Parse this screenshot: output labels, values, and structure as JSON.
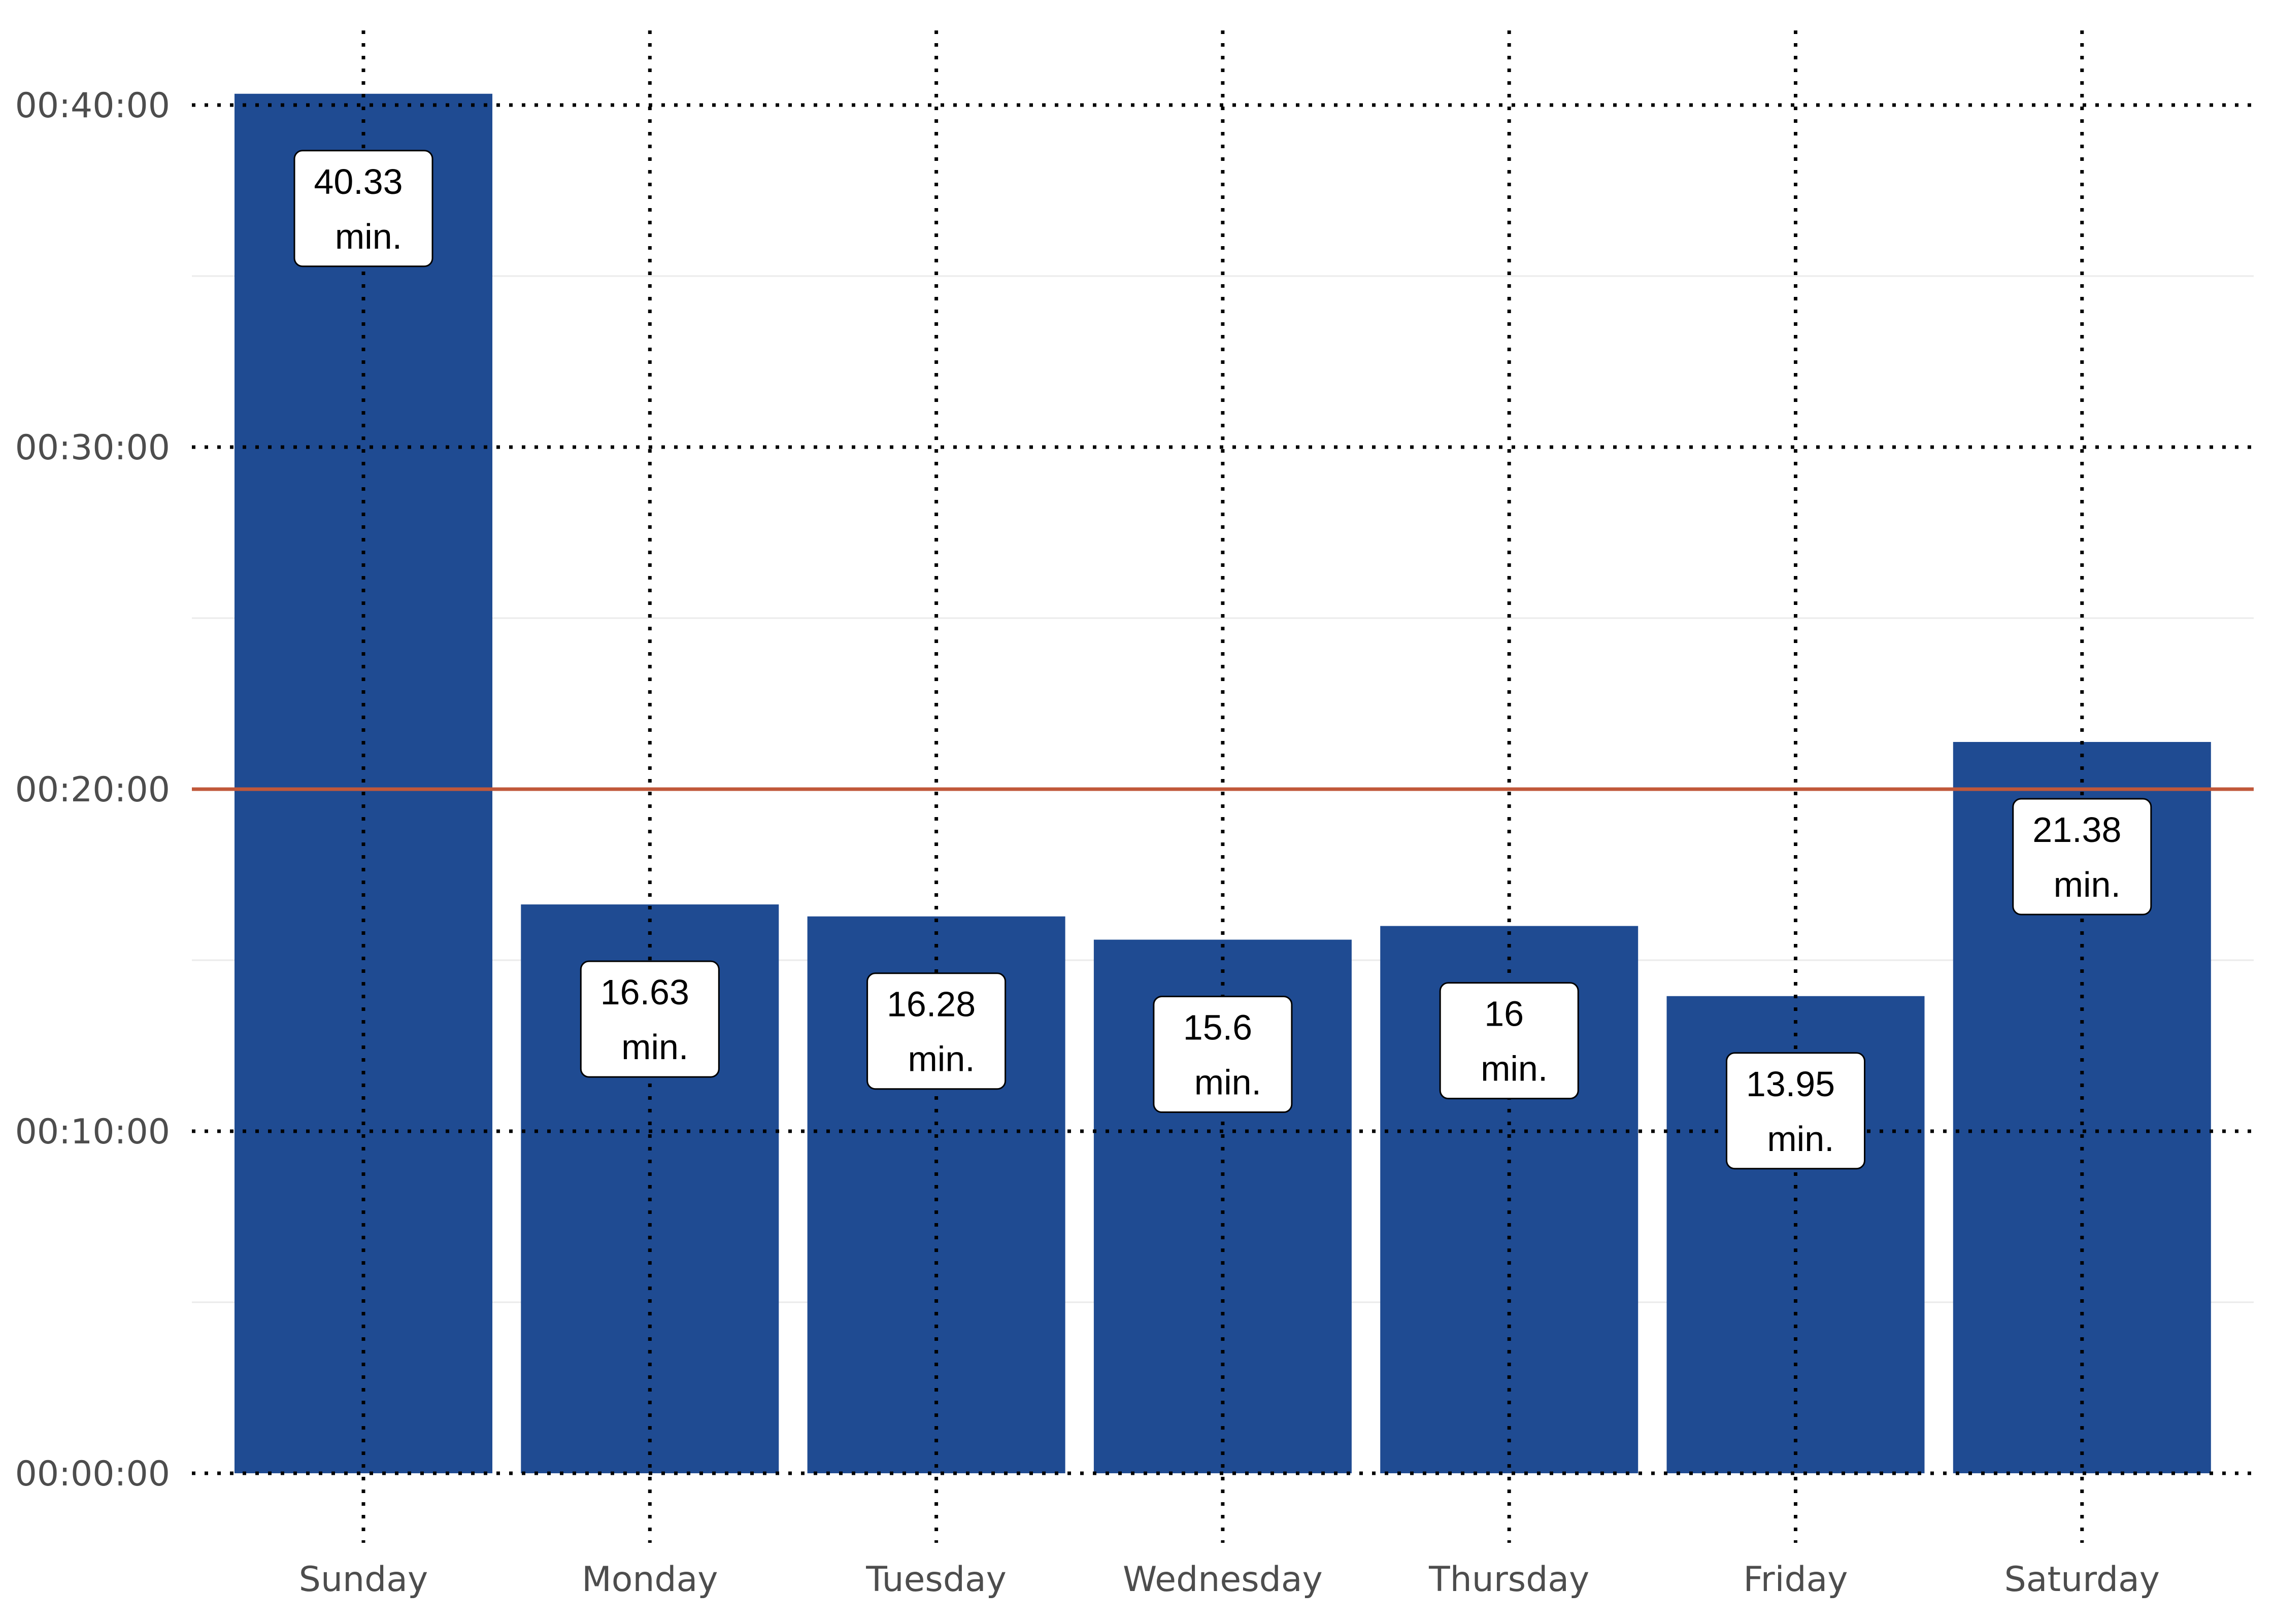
{
  "colors": {
    "bar": "#1f4b92",
    "reference_line": "#c0583a",
    "major_grid": "#000000",
    "minor_grid": "#ebebeb",
    "tick_text": "#4d4d4d",
    "background": "#ffffff"
  },
  "chart_data": {
    "type": "bar",
    "title": "",
    "xlabel": "",
    "ylabel": "",
    "categories": [
      "Sunday",
      "Monday",
      "Tuesday",
      "Wednesday",
      "Thursday",
      "Friday",
      "Saturday"
    ],
    "values": [
      40.33,
      16.63,
      16.28,
      15.6,
      16,
      13.95,
      21.38
    ],
    "unit": "min.",
    "data_labels": [
      [
        "40.33",
        "min."
      ],
      [
        "16.63",
        "min."
      ],
      [
        "16.28",
        "min."
      ],
      [
        "15.6",
        "min."
      ],
      [
        "16",
        "min."
      ],
      [
        "13.95",
        "min."
      ],
      [
        "21.38",
        "min."
      ]
    ],
    "ylim": [
      0,
      42
    ],
    "y_major_ticks": [
      0,
      10,
      20,
      30,
      40
    ],
    "y_minor_ticks": [
      5,
      15,
      25,
      35
    ],
    "y_tick_labels": [
      "00:00:00",
      "00:10:00",
      "00:20:00",
      "00:30:00",
      "00:40:00"
    ],
    "reference_line": 20,
    "grid": "dotted major",
    "legend": "none"
  }
}
